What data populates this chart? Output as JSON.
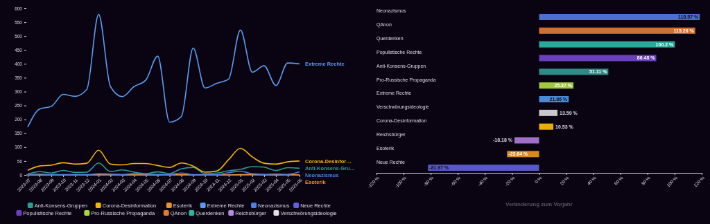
{
  "chart_data": [
    {
      "type": "line",
      "categories": [
        "2023-07",
        "2023-08",
        "2023-09",
        "2023-10",
        "2023-11",
        "2023-12",
        "2024-01",
        "2024-02",
        "2024-03",
        "2024-04",
        "2024-05",
        "2024-06",
        "2024-07",
        "2024-08",
        "2024-09",
        "2024-10",
        "2024-11",
        "2024-12",
        "2025-01",
        "2025-02",
        "2025-03",
        "2025-04",
        "2025-05",
        "2025-06"
      ],
      "ylim": [
        0,
        600
      ],
      "yticks": [
        0,
        50,
        100,
        150,
        200,
        250,
        300,
        350,
        400,
        450,
        500,
        550,
        600
      ],
      "grid": false,
      "legend": "bottom",
      "marker": "none",
      "line_style": "solid",
      "series": [
        {
          "name": "Anti-Konsens-Gruppen",
          "color": "#2a9d8f",
          "values": [
            3,
            12,
            7,
            16,
            9,
            10,
            43,
            12,
            18,
            10,
            5,
            11,
            5,
            22,
            27,
            5,
            7,
            15,
            20,
            30,
            28,
            16,
            26,
            24
          ]
        },
        {
          "name": "Corona-Desinformation",
          "color": "#f4b400",
          "values": [
            17,
            32,
            35,
            44,
            39,
            42,
            89,
            39,
            36,
            41,
            41,
            34,
            27,
            43,
            32,
            10,
            14,
            55,
            96,
            65,
            42,
            39,
            47,
            50
          ]
        },
        {
          "name": "Esoterik",
          "color": "#e8912d",
          "values": [
            0,
            0,
            0,
            0,
            0,
            0,
            1,
            1,
            0,
            0,
            0,
            0,
            0,
            1,
            0,
            0,
            0,
            0,
            1,
            2,
            1,
            0,
            1,
            0
          ]
        },
        {
          "name": "Extreme Rechte",
          "color": "#5b9bf0",
          "values": [
            172,
            237,
            247,
            290,
            283,
            308,
            578,
            318,
            282,
            318,
            342,
            428,
            190,
            210,
            457,
            313,
            330,
            345,
            522,
            370,
            393,
            322,
            403,
            400
          ]
        },
        {
          "name": "Neonazismus",
          "color": "#4f7fe0",
          "values": [
            1,
            3,
            1,
            1,
            1,
            1,
            4,
            3,
            1,
            5,
            3,
            2,
            1,
            7,
            1,
            1,
            1,
            8,
            13,
            4,
            2,
            3,
            2,
            11
          ]
        },
        {
          "name": "Neue Rechte",
          "color": "#6060e0",
          "values": [
            null,
            null,
            null,
            null,
            null,
            null,
            null,
            null,
            null,
            null,
            null,
            null,
            null,
            null,
            null,
            null,
            null,
            null,
            null,
            null,
            null,
            null,
            null,
            null
          ]
        },
        {
          "name": "Populistische Rechte",
          "color": "#6a3fc8",
          "values": [
            null,
            null,
            null,
            null,
            null,
            null,
            null,
            null,
            null,
            null,
            null,
            null,
            null,
            null,
            null,
            null,
            null,
            null,
            null,
            null,
            null,
            null,
            null,
            null
          ]
        },
        {
          "name": "Pro-Russische Propaganda",
          "color": "#a8d840",
          "values": [
            null,
            null,
            null,
            null,
            null,
            null,
            null,
            null,
            null,
            null,
            null,
            null,
            null,
            null,
            null,
            null,
            null,
            null,
            null,
            null,
            null,
            null,
            null,
            null
          ]
        },
        {
          "name": "QAnon",
          "color": "#e07830",
          "values": [
            null,
            null,
            null,
            null,
            null,
            null,
            null,
            null,
            null,
            null,
            null,
            null,
            null,
            null,
            null,
            null,
            null,
            null,
            null,
            null,
            null,
            null,
            null,
            null
          ]
        },
        {
          "name": "Querdenken",
          "color": "#2db3a0",
          "values": [
            null,
            null,
            null,
            null,
            null,
            null,
            null,
            null,
            null,
            null,
            null,
            null,
            null,
            null,
            null,
            null,
            null,
            null,
            null,
            null,
            null,
            null,
            null,
            null
          ]
        },
        {
          "name": "Reichsbürger",
          "color": "#b58ae0",
          "values": [
            null,
            null,
            null,
            null,
            null,
            null,
            null,
            null,
            null,
            null,
            null,
            null,
            null,
            null,
            null,
            null,
            null,
            null,
            null,
            null,
            null,
            null,
            null,
            null
          ]
        },
        {
          "name": "Verschwörungsideologie",
          "color": "#e0e0e8",
          "values": [
            null,
            null,
            null,
            null,
            null,
            null,
            null,
            null,
            null,
            null,
            null,
            null,
            null,
            null,
            null,
            null,
            null,
            null,
            null,
            null,
            null,
            null,
            null,
            null
          ]
        }
      ],
      "annotations": [
        {
          "text": "Extreme Rechte",
          "x": "2025-06",
          "y": 400
        },
        {
          "text": "Corona-Desinfor…",
          "x": "2025-06",
          "y": 50
        },
        {
          "text": "Anti-Konsens-Gru…",
          "x": "2025-06",
          "y": 24
        },
        {
          "text": "Neonazismus",
          "x": "2025-06",
          "y": 11
        },
        {
          "text": "Esoterik",
          "x": "2025-06",
          "y": 0
        }
      ]
    },
    {
      "type": "bar",
      "orientation": "horizontal",
      "categories": [
        "Neonazismus",
        "QAnon",
        "Querdenken",
        "Populistische Rechte",
        "Anti-Konsens-Gruppen",
        "Pro-Russische Propaganda",
        "Extreme Rechte",
        "Verschwörungsideologie",
        "Corona-Desinformation",
        "Reichsbürger",
        "Esoterik",
        "Neue Rechte"
      ],
      "values": [
        118.57,
        115.26,
        100.2,
        86.48,
        51.11,
        25.37,
        21.86,
        13.59,
        10.53,
        -18.18,
        -23.64,
        -81.97
      ],
      "value_labels": [
        "118.57 %",
        "115.26 %",
        "100.2 %",
        "86.48 %",
        "51.11 %",
        "25.37 %",
        "21.86 %",
        "13.59 %",
        "10.53 %",
        "-18.18 %",
        "-23.64 %",
        "-81.97 %"
      ],
      "colors": [
        "#4a6fd0",
        "#d07030",
        "#2aa89a",
        "#6a3fc0",
        "#2f8a88",
        "#a0c840",
        "#4a88d8",
        "#c8c8cc",
        "#e8b000",
        "#a070c8",
        "#d88a20",
        "#5858c8"
      ],
      "xlim": [
        -120,
        120
      ],
      "xticks": [
        {
          "value": -120,
          "label": "-120 %"
        },
        {
          "value": -100,
          "label": "-100 %"
        },
        {
          "value": -80,
          "label": "-80 %"
        },
        {
          "value": -60,
          "label": "-60 %"
        },
        {
          "value": -40,
          "label": "-40 %"
        },
        {
          "value": -20,
          "label": "-20 %"
        },
        {
          "value": 0,
          "label": "0 %"
        },
        {
          "value": 20,
          "label": "20 %"
        },
        {
          "value": 40,
          "label": "40 %"
        },
        {
          "value": 60,
          "label": "60 %"
        },
        {
          "value": 80,
          "label": "80 %"
        },
        {
          "value": 100,
          "label": "100 %"
        },
        {
          "value": 120,
          "label": "120 %"
        }
      ],
      "xlabel": "Veränderung zum Vorjahr"
    }
  ]
}
